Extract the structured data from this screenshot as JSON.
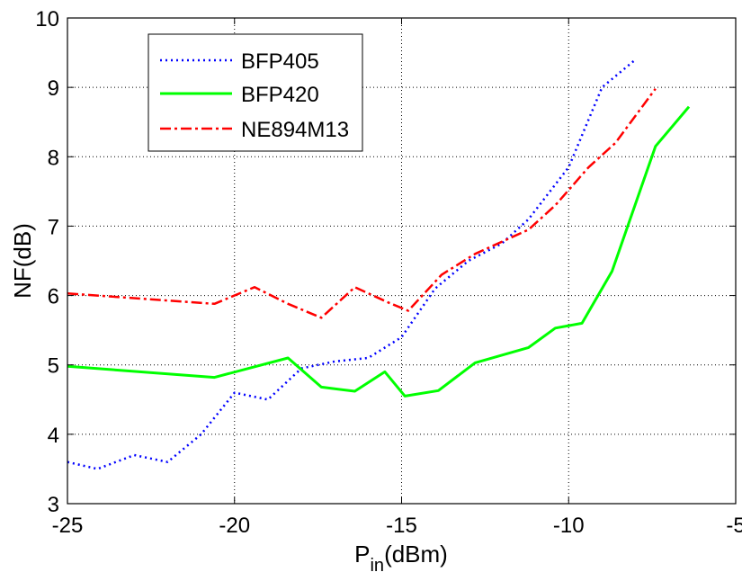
{
  "chart_data": {
    "type": "line",
    "xlabel": "P",
    "xlabel_sub": "in",
    "xlabel_suffix": "(dBm)",
    "ylabel": "NF(dB)",
    "xlim": [
      -25,
      -5
    ],
    "ylim": [
      3,
      10
    ],
    "xticks": [
      -25,
      -20,
      -15,
      -10,
      -5
    ],
    "yticks": [
      3,
      4,
      5,
      6,
      7,
      8,
      9,
      10
    ],
    "xtick_labels": [
      "-25",
      "-20",
      "-15",
      "-10",
      "-5"
    ],
    "ytick_labels": [
      "3",
      "4",
      "5",
      "6",
      "7",
      "8",
      "9",
      "10"
    ],
    "grid": true,
    "legend_position": "top-left",
    "series": [
      {
        "name": "BFP405",
        "color": "#0000ff",
        "style": "dotted",
        "x": [
          -25,
          -24.1,
          -23,
          -22,
          -21,
          -20,
          -19,
          -18,
          -17,
          -16,
          -15,
          -14,
          -13,
          -12,
          -11.2,
          -10,
          -9,
          -8
        ],
        "y": [
          3.6,
          3.5,
          3.7,
          3.6,
          4.0,
          4.6,
          4.5,
          4.95,
          5.05,
          5.1,
          5.4,
          6.1,
          6.5,
          6.75,
          7.1,
          7.85,
          9.0,
          9.4
        ]
      },
      {
        "name": "BFP420",
        "color": "#00ff00",
        "style": "solid",
        "x": [
          -25,
          -20.6,
          -18.4,
          -17.4,
          -16.4,
          -15.5,
          -14.9,
          -13.9,
          -12.8,
          -11.2,
          -10.4,
          -9.6,
          -8.7,
          -7.4,
          -6.4
        ],
        "y": [
          4.98,
          4.82,
          5.1,
          4.68,
          4.62,
          4.9,
          4.55,
          4.63,
          5.03,
          5.25,
          5.53,
          5.6,
          6.35,
          8.15,
          8.72
        ]
      },
      {
        "name": "NE894M13",
        "color": "#ff0000",
        "style": "dashdot",
        "x": [
          -25,
          -20.6,
          -19.4,
          -18.4,
          -17.4,
          -16.4,
          -15.4,
          -14.8,
          -13.8,
          -12.8,
          -11.2,
          -10.4,
          -9.4,
          -8.6,
          -7.4
        ],
        "y": [
          6.03,
          5.88,
          6.12,
          5.88,
          5.68,
          6.12,
          5.9,
          5.78,
          6.3,
          6.6,
          6.95,
          7.3,
          7.85,
          8.2,
          8.98
        ]
      }
    ]
  }
}
